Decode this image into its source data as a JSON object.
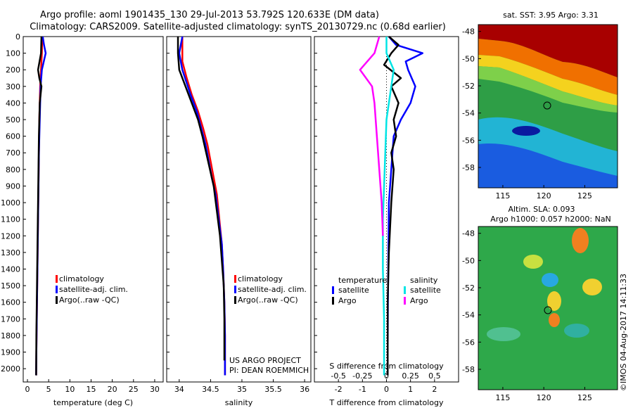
{
  "header": {
    "line1": "Argo profile: aoml 1901435_130 29-Jul-2013 53.792S 120.633E (DM data)",
    "line2": "Climatology: CARS2009. Satellite-adjusted climatology: synTS_20130729.nc (0.68d earlier)"
  },
  "colors": {
    "climatology": "#ff0000",
    "satellite": "#0000ff",
    "argo": "#000000",
    "satellite_salinity": "#00e5e5",
    "argo_salinity": "#ff00ff"
  },
  "chart_data": [
    {
      "type": "line",
      "panel": "temperature",
      "xlabel": "temperature (deg C)",
      "xlim": [
        -1,
        32
      ],
      "xticks": [
        0,
        5,
        10,
        15,
        20,
        25,
        30
      ],
      "ylim": [
        2080,
        0
      ],
      "yticks": [
        0,
        100,
        200,
        300,
        400,
        500,
        600,
        700,
        800,
        900,
        1000,
        1100,
        1200,
        1300,
        1400,
        1500,
        1600,
        1700,
        1800,
        1900,
        2000
      ],
      "legend": {
        "entries": [
          "climatology",
          "satellite-adj. clim.",
          "Argo(..raw -QC)"
        ],
        "placement": "center"
      },
      "series": [
        {
          "name": "climatology",
          "color": "#ff0000",
          "x": [
            3.5,
            3.4,
            3.2,
            3.0,
            2.9,
            2.8,
            2.7,
            2.6,
            2.5,
            2.4,
            2.3,
            2.2,
            2.1,
            2.05
          ],
          "y": [
            0,
            100,
            200,
            300,
            400,
            500,
            700,
            900,
            1100,
            1300,
            1500,
            1700,
            1900,
            2040
          ]
        },
        {
          "name": "satellite-adj. clim.",
          "color": "#0000ff",
          "x": [
            3.6,
            3.9,
            4.3,
            3.4,
            3.1,
            2.9,
            2.7,
            2.6,
            2.5,
            2.4,
            2.3,
            2.2,
            2.1,
            2.05
          ],
          "y": [
            0,
            50,
            100,
            200,
            300,
            500,
            700,
            900,
            1100,
            1300,
            1500,
            1700,
            1900,
            2040
          ]
        },
        {
          "name": "Argo(..raw -QC)",
          "color": "#000000",
          "x": [
            3.3,
            3.2,
            2.5,
            2.8,
            3.3,
            2.9,
            2.7,
            2.6,
            2.5,
            2.4,
            2.3,
            2.2,
            2.1,
            2.05
          ],
          "y": [
            0,
            100,
            200,
            250,
            300,
            400,
            600,
            800,
            1000,
            1200,
            1400,
            1600,
            1800,
            2040
          ]
        }
      ]
    },
    {
      "type": "line",
      "panel": "salinity",
      "xlabel": "salinity",
      "xlim": [
        33.8,
        36.1
      ],
      "xticks": [
        34,
        34.5,
        35,
        35.5,
        36
      ],
      "xticklabels": [
        "34",
        "34.5",
        "35",
        "35.5",
        "36"
      ],
      "ylim": [
        2080,
        0
      ],
      "legend": {
        "entries": [
          "climatology",
          "satellite-adj. clim.",
          "Argo(..raw -QC)"
        ],
        "placement": "center"
      },
      "annotations": [
        "US ARGO PROJECT",
        "PI: DEAN ROEMMICH"
      ],
      "series": [
        {
          "name": "climatology",
          "color": "#ff0000",
          "x": [
            34.05,
            34.05,
            34.12,
            34.2,
            34.3,
            34.38,
            34.45,
            34.5,
            34.55,
            34.6,
            34.64,
            34.68,
            34.7,
            34.72,
            34.73,
            34.73
          ],
          "y": [
            0,
            150,
            250,
            350,
            450,
            550,
            650,
            750,
            850,
            950,
            1100,
            1250,
            1400,
            1600,
            1800,
            2040
          ]
        },
        {
          "name": "satellite-adj. clim.",
          "color": "#0000ff",
          "x": [
            34.05,
            34.0,
            34.05,
            34.18,
            34.28,
            34.35,
            34.42,
            34.47,
            34.52,
            34.58,
            34.63,
            34.68,
            34.7,
            34.72,
            34.73,
            34.73
          ],
          "y": [
            0,
            100,
            200,
            350,
            450,
            550,
            650,
            750,
            850,
            950,
            1100,
            1250,
            1400,
            1600,
            1800,
            2040
          ]
        },
        {
          "name": "Argo(..raw -QC)",
          "color": "#000000",
          "x": [
            33.98,
            33.98,
            34.0,
            34.1,
            34.2,
            34.3,
            34.37,
            34.43,
            34.49,
            34.55,
            34.6,
            34.65,
            34.68,
            34.71,
            34.72,
            34.72
          ],
          "y": [
            0,
            100,
            200,
            300,
            400,
            500,
            600,
            700,
            800,
            900,
            1050,
            1200,
            1350,
            1500,
            1700,
            1950
          ]
        }
      ]
    },
    {
      "type": "line",
      "panel": "difference",
      "xlabel": "T difference from climatology",
      "xlabel_top": "S difference from climatology",
      "xlim": [
        -3,
        3
      ],
      "xticks": [
        -2,
        -1,
        0,
        1,
        2
      ],
      "s_xticks": [
        -0.5,
        -0.25,
        0,
        0.25,
        0.5
      ],
      "s_xticklabels": [
        "-0.5",
        "-0.25",
        "0",
        "0.25",
        "0.5"
      ],
      "s_scale": 4,
      "ylim": [
        2080,
        0
      ],
      "legend": {
        "temperature_title": "temperature",
        "salinity_title": "salinity",
        "temperature_entries": [
          "satellite",
          "Argo"
        ],
        "salinity_entries": [
          "satellite",
          "Argo"
        ],
        "placement": "center"
      },
      "series": [
        {
          "name": "temperature satellite",
          "color": "#0000ff",
          "x": [
            0.1,
            0.4,
            1.5,
            0.8,
            0.9,
            1.2,
            1.0,
            0.6,
            0.3,
            0.2,
            0.1,
            0.08,
            0.06,
            0.05,
            0.05
          ],
          "y": [
            0,
            50,
            100,
            150,
            200,
            300,
            400,
            500,
            600,
            800,
            1000,
            1300,
            1600,
            1900,
            2040
          ]
        },
        {
          "name": "temperature Argo",
          "color": "#000000",
          "x": [
            0.1,
            0.5,
            0.2,
            -0.1,
            0.6,
            0.2,
            0.5,
            0.3,
            0.4,
            0.2,
            0.3,
            0.2,
            0.1,
            0.05,
            0.05
          ],
          "y": [
            0,
            50,
            100,
            170,
            250,
            300,
            400,
            500,
            600,
            700,
            800,
            1000,
            1300,
            1600,
            2040
          ]
        },
        {
          "name": "salinity satellite",
          "color": "#00e5e5",
          "x": [
            0.0,
            0.0,
            0.3,
            0.2,
            0.1,
            0.0,
            -0.05,
            -0.1,
            -0.15,
            -0.15,
            -0.1,
            -0.1
          ],
          "y": [
            0,
            100,
            200,
            300,
            400,
            500,
            700,
            900,
            1100,
            1400,
            1700,
            2040
          ]
        },
        {
          "name": "salinity Argo",
          "color": "#ff00ff",
          "x": [
            -0.3,
            -0.5,
            -1.1,
            -0.6,
            -0.5,
            -0.4,
            -0.3,
            -0.2,
            -0.15
          ],
          "y": [
            0,
            100,
            200,
            300,
            400,
            600,
            800,
            1000,
            1200
          ]
        }
      ]
    },
    {
      "type": "heatmap",
      "panel": "map-sst",
      "title": "sat. SST: 3.95 Argo: 3.31",
      "xlim": [
        112,
        129
      ],
      "ylim": [
        -59.5,
        -47.5
      ],
      "xticks": [
        115,
        120,
        125
      ],
      "yticks": [
        -48,
        -50,
        -52,
        -54,
        -56,
        -58
      ],
      "marker": {
        "lon": 120.633,
        "lat": -53.792
      }
    },
    {
      "type": "heatmap",
      "panel": "map-sla",
      "title_line1": "Altim. SLA: 0.093",
      "title_line2": "Argo h1000: 0.057 h2000: NaN",
      "xlim": [
        112,
        129
      ],
      "ylim": [
        -59.5,
        -47.5
      ],
      "xticks": [
        115,
        120,
        125
      ],
      "yticks": [
        -48,
        -50,
        -52,
        -54,
        -56,
        -58
      ],
      "marker": {
        "lon": 120.633,
        "lat": -53.792
      }
    }
  ],
  "footer_stamp": "©IMOS 04-Aug-2017 14:11:33"
}
